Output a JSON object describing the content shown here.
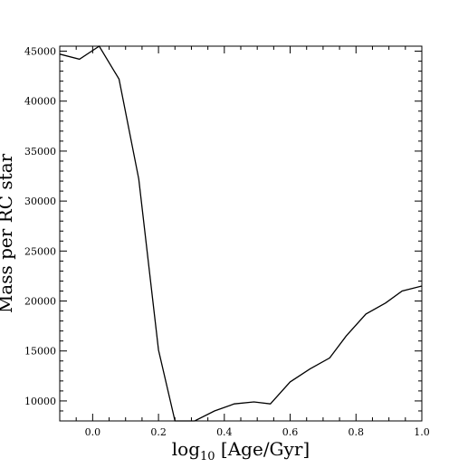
{
  "chart_data": {
    "type": "line",
    "xlabel": "log10 [Age/Gyr]",
    "xlabel_parts": {
      "base": "log",
      "sub": "10",
      "rest": " [Age/Gyr]"
    },
    "ylabel": "Mass per RC star",
    "xlim": [
      -0.1,
      1.0
    ],
    "ylim": [
      8000,
      45500
    ],
    "xticks": [
      0.0,
      0.2,
      0.4,
      0.6,
      0.8,
      1.0
    ],
    "xtick_labels": [
      "0.0",
      "0.2",
      "0.4",
      "0.6",
      "0.8",
      "1.0"
    ],
    "yticks": [
      10000,
      15000,
      20000,
      25000,
      30000,
      35000,
      40000,
      45000
    ],
    "ytick_labels": [
      "10000",
      "15000",
      "20000",
      "25000",
      "30000",
      "35000",
      "40000",
      "45000"
    ],
    "grid": false,
    "series": [
      {
        "color": "#000000",
        "x": [
          -0.1,
          -0.04,
          0.02,
          0.08,
          0.14,
          0.2,
          0.25,
          0.31,
          0.37,
          0.43,
          0.49,
          0.54,
          0.6,
          0.66,
          0.72,
          0.77,
          0.83,
          0.89,
          0.94,
          1.0
        ],
        "y": [
          44700,
          44200,
          45500,
          42200,
          32200,
          15100,
          8000,
          8000,
          9000,
          9700,
          9900,
          9700,
          11900,
          13200,
          14300,
          16500,
          18700,
          19800,
          21000,
          21500
        ]
      }
    ]
  }
}
